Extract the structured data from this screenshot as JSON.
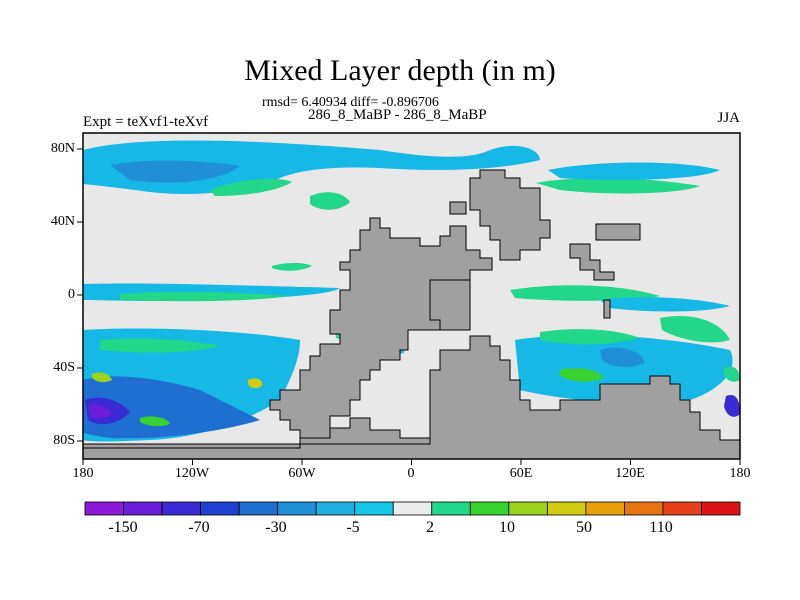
{
  "title": "Mixed Layer depth (in m)",
  "stats_line": "rmsd= 6.40934 diff= -0.896706",
  "case_line": "286_8_MaBP - 286_8_MaBP",
  "experiment_label": "Expt = teXvf1-teXvf",
  "season_label": "JJA",
  "x_ticks": [
    "180",
    "120W",
    "60W",
    "0",
    "60E",
    "120E",
    "180"
  ],
  "y_ticks": [
    "80N",
    "40N",
    "0",
    "40S",
    "80S"
  ],
  "colorbar": {
    "colors": [
      "#8c1ad8",
      "#6a1fd6",
      "#3a2ad4",
      "#1f40d0",
      "#1f6fd2",
      "#1f90d8",
      "#1fb0e0",
      "#16c6e6",
      "#ebebeb",
      "#22d68a",
      "#38d22e",
      "#9ad21c",
      "#d2cc10",
      "#e6a00a",
      "#e67410",
      "#e6401a",
      "#dc1414"
    ],
    "labels": [
      "-150",
      "-70",
      "-30",
      "-5",
      "2",
      "10",
      "50",
      "110"
    ]
  },
  "colors": {
    "land": "#a0a0a0",
    "ocean_background": "#e8e8e8",
    "positive_anomaly": "#22d68a",
    "negative_anomaly": "#16b8e6"
  }
}
